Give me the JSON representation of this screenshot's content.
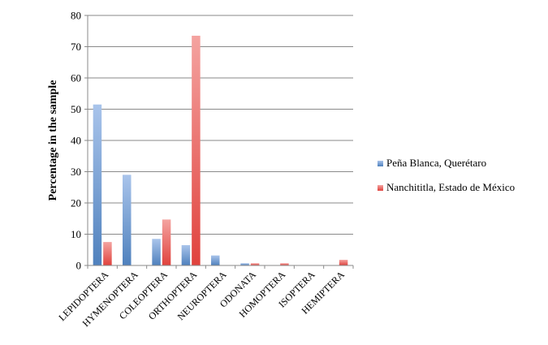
{
  "chart_data": {
    "type": "bar",
    "title": "",
    "xlabel": "",
    "ylabel": "Percentage in the sample",
    "ylim": [
      0,
      80
    ],
    "yticks": [
      0,
      10,
      20,
      30,
      40,
      50,
      60,
      70,
      80
    ],
    "grid": true,
    "legend_position": "right",
    "categories": [
      "LEPIDOPTERA",
      "HYMENOPTERA",
      "COLEOPTERA",
      "ORTHOPTERA",
      "NEUROPTERA",
      "ODONATA",
      "HOMOPTERA",
      "ISOPTERA",
      "HEMIPTERA"
    ],
    "series": [
      {
        "name": "Peña Blanca, Querétaro",
        "color": "#4f81bd",
        "light": "#a9c4eb",
        "values": [
          51.5,
          29,
          8.5,
          6.5,
          3.2,
          0.7,
          0,
          0,
          0
        ]
      },
      {
        "name": "Nanchititla, Estado de México",
        "color": "#e0423d",
        "light": "#f4a3a0",
        "values": [
          7.5,
          0,
          14.7,
          73.5,
          0,
          0.7,
          0.7,
          0,
          1.8
        ]
      }
    ]
  }
}
